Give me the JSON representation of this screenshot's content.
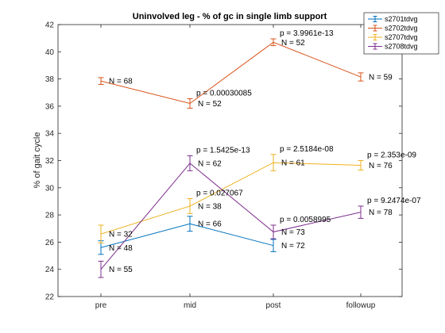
{
  "chart_data": {
    "type": "line",
    "title": "Uninvolved leg - % of gc in single limb support",
    "xlabel": "",
    "ylabel": "% of gait cycle",
    "categories": [
      "pre",
      "mid",
      "post",
      "followup"
    ],
    "ylim": [
      22,
      42
    ],
    "yticks": [
      22,
      24,
      26,
      28,
      30,
      32,
      34,
      36,
      38,
      40,
      42
    ],
    "grid": false,
    "legend_position": "top-right",
    "series": [
      {
        "name": "s2701tdvg",
        "color": "#0072BD",
        "values": [
          25.6,
          27.35,
          25.75,
          null
        ],
        "errors": [
          0.5,
          0.55,
          0.45,
          null
        ],
        "n_labels": [
          "N = 48",
          "N = 66",
          "N = 72",
          ""
        ],
        "p_labels": [
          "",
          "",
          "",
          ""
        ]
      },
      {
        "name": "s2702tdvg",
        "color": "#D95319",
        "values": [
          37.85,
          36.2,
          40.7,
          38.15
        ],
        "errors": [
          0.25,
          0.35,
          0.25,
          0.3
        ],
        "n_labels": [
          "N = 68",
          "N = 52",
          "N = 52",
          "N = 59"
        ],
        "p_labels": [
          "",
          "p = 0.00030085",
          "p = 3.9961e-13",
          ""
        ]
      },
      {
        "name": "s2707tdvg",
        "color": "#EDB120",
        "values": [
          26.6,
          28.65,
          31.85,
          31.65
        ],
        "errors": [
          0.65,
          0.55,
          0.6,
          0.35
        ],
        "n_labels": [
          "N = 32",
          "N = 38",
          "N = 61",
          "N = 76"
        ],
        "p_labels": [
          "",
          "p = 0.027067",
          "p = 2.5184e-08",
          "p = 2.353e-09"
        ]
      },
      {
        "name": "s2708tdvg",
        "color": "#7E2F8E",
        "values": [
          24.0,
          31.8,
          26.75,
          28.2
        ],
        "errors": [
          0.6,
          0.55,
          0.5,
          0.45
        ],
        "n_labels": [
          "N = 55",
          "N = 62",
          "N = 73",
          "N = 78"
        ],
        "p_labels": [
          "",
          "p = 1.5425e-13",
          "p = 0.0058995",
          "p = 9.2474e-07"
        ]
      }
    ]
  }
}
